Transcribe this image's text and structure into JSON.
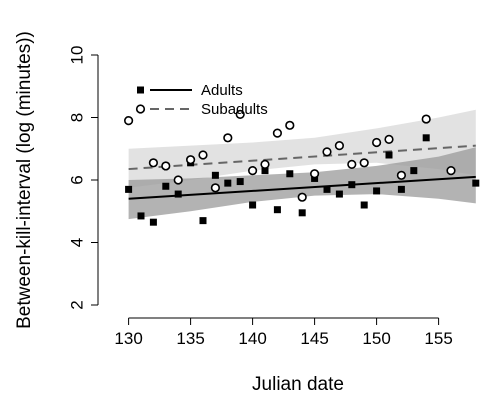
{
  "chart_data": {
    "type": "scatter",
    "title": "",
    "xlabel": "Julian date",
    "ylabel": "Between-kill-interval (log (minutes))",
    "xlim": [
      128.5,
      158.5
    ],
    "ylim": [
      2,
      10
    ],
    "xticks": [
      130,
      135,
      140,
      145,
      150,
      155
    ],
    "yticks": [
      2,
      4,
      6,
      8,
      10
    ],
    "legend_position": "top-left",
    "grid": false,
    "colors": {
      "adults_points": "#000000",
      "adults_line": "#000000",
      "adults_band": "#999999",
      "subadults_line": "#666666",
      "subadults_band": "#dddddd"
    },
    "series": [
      {
        "name": "Adults",
        "marker": "filled-square",
        "linestyle": "solid",
        "points": [
          [
            130,
            5.7
          ],
          [
            131,
            4.85
          ],
          [
            132,
            4.65
          ],
          [
            133,
            5.8
          ],
          [
            134,
            5.55
          ],
          [
            135,
            6.55
          ],
          [
            136,
            4.7
          ],
          [
            137,
            6.15
          ],
          [
            138,
            5.9
          ],
          [
            139,
            5.95
          ],
          [
            140,
            5.2
          ],
          [
            141,
            6.3
          ],
          [
            142,
            5.05
          ],
          [
            143,
            6.2
          ],
          [
            144,
            4.95
          ],
          [
            145,
            6.05
          ],
          [
            146,
            5.7
          ],
          [
            147,
            5.55
          ],
          [
            148,
            5.85
          ],
          [
            149,
            5.2
          ],
          [
            150,
            5.65
          ],
          [
            151,
            6.8
          ],
          [
            152,
            5.7
          ],
          [
            153,
            6.3
          ],
          [
            154,
            7.35
          ],
          [
            158,
            5.9
          ]
        ],
        "fit": {
          "x": [
            130,
            158
          ],
          "y": [
            5.4,
            6.1
          ]
        },
        "ci": {
          "x": [
            130,
            135,
            140,
            145,
            150,
            155,
            158
          ],
          "upper": [
            6.0,
            6.05,
            6.15,
            6.25,
            6.45,
            6.75,
            7.05
          ],
          "lower": [
            4.75,
            5.0,
            5.3,
            5.5,
            5.55,
            5.4,
            5.25
          ]
        }
      },
      {
        "name": "Subadults",
        "marker": "open-circle",
        "linestyle": "dashed",
        "points": [
          [
            130,
            7.9
          ],
          [
            132,
            6.55
          ],
          [
            133,
            6.45
          ],
          [
            134,
            6.0
          ],
          [
            135,
            6.65
          ],
          [
            136,
            6.8
          ],
          [
            137,
            5.75
          ],
          [
            138,
            7.35
          ],
          [
            139,
            8.1
          ],
          [
            140,
            6.3
          ],
          [
            141,
            6.5
          ],
          [
            142,
            7.5
          ],
          [
            143,
            7.75
          ],
          [
            144,
            5.45
          ],
          [
            145,
            6.2
          ],
          [
            146,
            6.9
          ],
          [
            147,
            7.1
          ],
          [
            148,
            6.5
          ],
          [
            149,
            6.55
          ],
          [
            150,
            7.2
          ],
          [
            151,
            7.3
          ],
          [
            152,
            6.15
          ],
          [
            154,
            7.95
          ],
          [
            156,
            6.3
          ]
        ],
        "fit": {
          "x": [
            130,
            158
          ],
          "y": [
            6.35,
            7.1
          ]
        },
        "ci": {
          "x": [
            130,
            135,
            140,
            145,
            150,
            155,
            158
          ],
          "upper": [
            7.0,
            7.1,
            7.2,
            7.35,
            7.65,
            8.0,
            8.25
          ],
          "lower": [
            5.75,
            6.0,
            6.3,
            6.5,
            6.55,
            6.35,
            6.15
          ]
        }
      }
    ]
  }
}
